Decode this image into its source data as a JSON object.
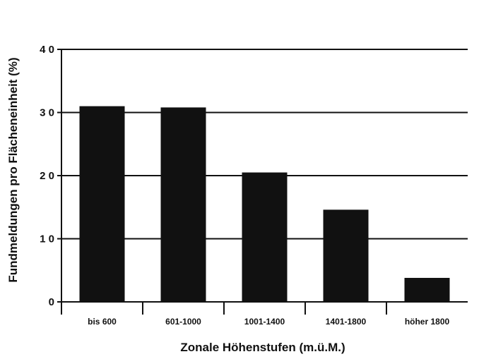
{
  "chart_data": {
    "type": "bar",
    "title": "",
    "xlabel": "Zonale Höhenstufen (m.ü.M.)",
    "ylabel": "Fundmeldungen pro Flächeneinheit (%)",
    "ylim": [
      0,
      40
    ],
    "yticks": [
      0,
      10,
      20,
      30,
      40
    ],
    "ytick_labels": [
      "0",
      "1 0",
      "2 0",
      "3 0",
      "4 0"
    ],
    "grid": "horizontal",
    "categories": [
      "bis 600",
      "601-1000",
      "1001-1400",
      "1401-1800",
      "höher 1800"
    ],
    "values": [
      31,
      30.8,
      20.5,
      14.6,
      3.8
    ],
    "bar_color": "#111111"
  }
}
